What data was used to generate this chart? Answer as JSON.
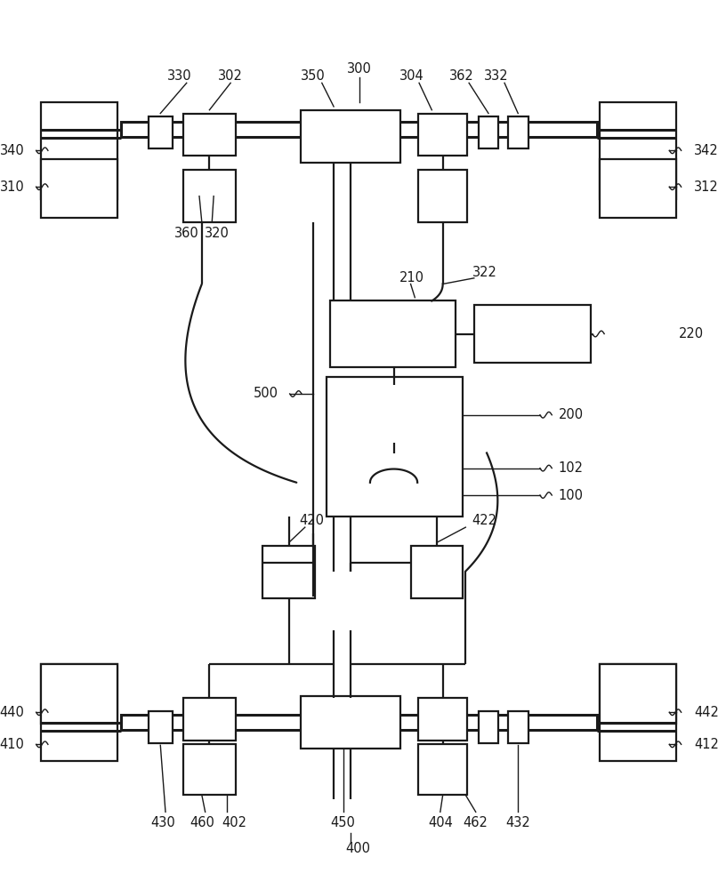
{
  "bg": "#ffffff",
  "lc": "#1a1a1a",
  "lw": 1.6,
  "lw_thick": 2.2,
  "lw_thin": 1.0,
  "fs": 10.5,
  "fig_w": 8.07,
  "fig_h": 10.0
}
